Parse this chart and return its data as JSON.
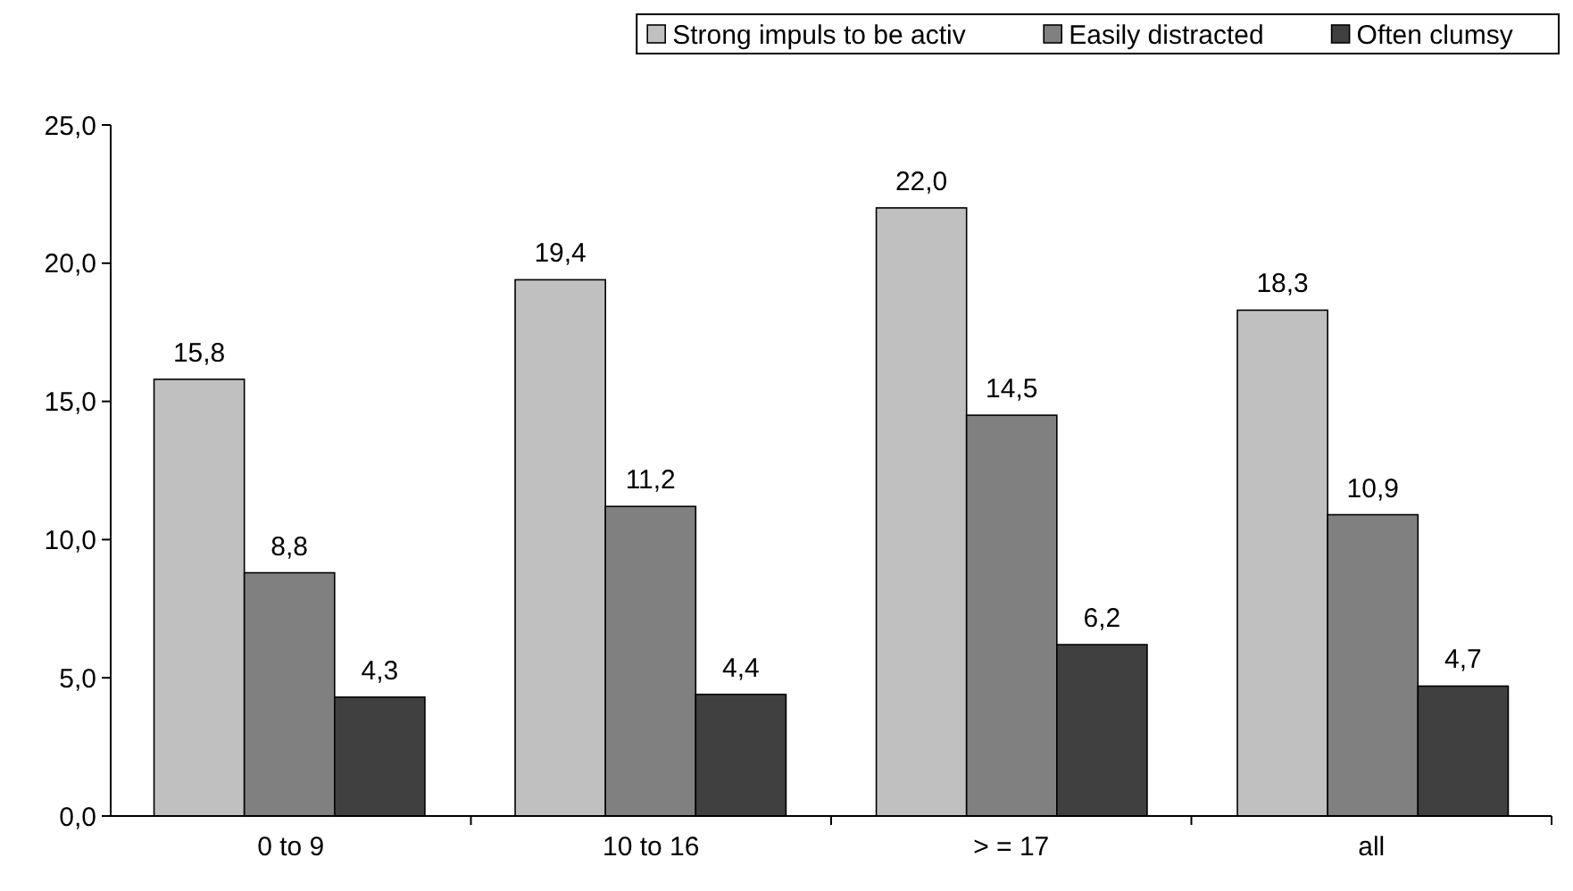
{
  "chart_data": {
    "type": "bar",
    "categories": [
      "0 to 9",
      "10 to 16",
      "> = 17",
      "all"
    ],
    "series": [
      {
        "name": "Strong impuls to be activ",
        "color": "#c0c0c0",
        "values": [
          15.8,
          19.4,
          22.0,
          18.3
        ],
        "value_labels": [
          "15,8",
          "19,4",
          "22,0",
          "18,3"
        ]
      },
      {
        "name": "Easily distracted",
        "color": "#808080",
        "values": [
          8.8,
          11.2,
          14.5,
          10.9
        ],
        "value_labels": [
          "8,8",
          "11,2",
          "14,5",
          "10,9"
        ]
      },
      {
        "name": "Often clumsy",
        "color": "#404040",
        "values": [
          4.3,
          4.4,
          6.2,
          4.7
        ],
        "value_labels": [
          "4,3",
          "4,4",
          "6,2",
          "4,7"
        ]
      }
    ],
    "ylim": [
      0,
      25
    ],
    "yticks": [
      {
        "value": 0,
        "label": "0,0"
      },
      {
        "value": 5,
        "label": "5,0"
      },
      {
        "value": 10,
        "label": "10,0"
      },
      {
        "value": 15,
        "label": "15,0"
      },
      {
        "value": 20,
        "label": "20,0"
      },
      {
        "value": 25,
        "label": "25,0"
      }
    ],
    "grid": false,
    "legend": "top right"
  }
}
